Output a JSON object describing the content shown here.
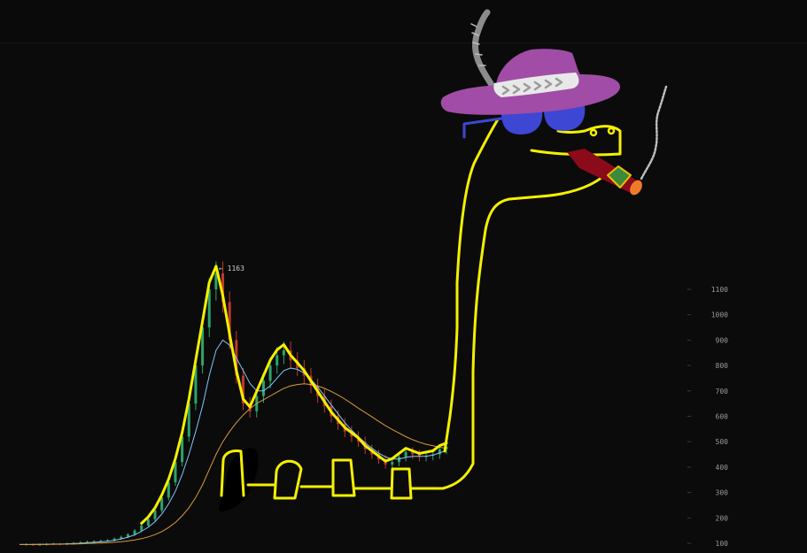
{
  "chart_data": {
    "type": "line",
    "title": "",
    "xlabel": "",
    "ylabel": "",
    "ylim": [
      60,
      1200
    ],
    "y_ticks": [
      100,
      200,
      300,
      400,
      500,
      600,
      700,
      800,
      900,
      1000,
      1100
    ],
    "annotations": [
      {
        "label": "← 1163",
        "value": 1163
      }
    ],
    "series": [
      {
        "style": "candles",
        "values": [
          95,
          96,
          94,
          95,
          97,
          98,
          96,
          99,
          101,
          104,
          106,
          108,
          110,
          112,
          118,
          125,
          135,
          150,
          170,
          195,
          230,
          280,
          340,
          420,
          520,
          650,
          800,
          950,
          1100,
          1163,
          1050,
          900,
          760,
          650,
          620,
          680,
          740,
          800,
          840,
          860,
          820,
          790,
          760,
          720,
          680,
          640,
          600,
          570,
          540,
          520,
          500,
          470,
          450,
          430,
          410,
          420,
          440,
          460,
          450,
          440,
          445,
          450,
          470,
          480
        ]
      },
      {
        "style": "moving-average-fast",
        "values": [
          95,
          95,
          95,
          96,
          96,
          97,
          97,
          98,
          99,
          100,
          102,
          104,
          106,
          108,
          112,
          117,
          124,
          133,
          147,
          163,
          185,
          215,
          255,
          305,
          370,
          450,
          540,
          640,
          760,
          860,
          900,
          880,
          830,
          780,
          730,
          700,
          700,
          720,
          750,
          780,
          790,
          785,
          770,
          745,
          715,
          680,
          645,
          610,
          575,
          545,
          520,
          495,
          475,
          455,
          440,
          432,
          432,
          438,
          442,
          442,
          443,
          447,
          456,
          465
        ]
      },
      {
        "style": "moving-average-slow",
        "values": [
          95,
          95,
          95,
          95,
          95,
          96,
          96,
          97,
          97,
          98,
          99,
          100,
          101,
          102,
          104,
          106,
          109,
          113,
          118,
          125,
          134,
          146,
          162,
          182,
          208,
          240,
          280,
          330,
          390,
          450,
          500,
          540,
          575,
          605,
          630,
          650,
          665,
          680,
          695,
          710,
          720,
          725,
          728,
          725,
          720,
          710,
          698,
          684,
          668,
          650,
          632,
          615,
          598,
          580,
          563,
          548,
          534,
          520,
          508,
          498,
          490,
          484,
          478,
          474
        ]
      }
    ],
    "colors": {
      "up_candle": "#2fa36b",
      "down_candle": "#c0392b",
      "ma_fast": "#7fc7ff",
      "ma_slow": "#d99a3a",
      "axis_text": "#9a9a9a",
      "doodle_outline": "#f4f000",
      "hat": "#a14ca6",
      "hat_band": "#e8e8e8",
      "feather": "#8c8c8c",
      "glasses": "#3d47d4",
      "cigar": "#8b0b1a",
      "cigar_tip": "#f07a28"
    },
    "doodle": {
      "icons": [
        "brontosaurus-outline",
        "pimp-hat",
        "feather",
        "sunglasses",
        "cigar",
        "smoke"
      ]
    }
  }
}
